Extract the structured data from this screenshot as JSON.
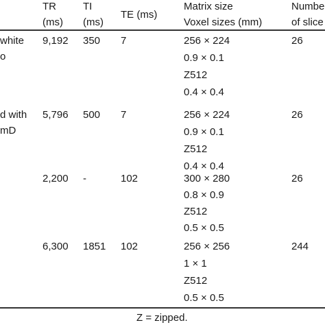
{
  "headers": {
    "tr": [
      "TR",
      "(ms)"
    ],
    "ti": [
      "TI",
      "(ms)"
    ],
    "te": "TE (ms)",
    "matrix": [
      "Matrix size",
      "Voxel sizes (mm)"
    ],
    "slices": [
      "Numbe",
      "of slice"
    ]
  },
  "rows": [
    {
      "label": [
        "white",
        "o"
      ],
      "tr": "9,192",
      "ti": "350",
      "te": "7",
      "matrix": [
        "256 × 224",
        "0.9 × 0.1",
        "Z512",
        "0.4 × 0.4"
      ],
      "slices": "26"
    },
    {
      "label": [
        "d with",
        "mD"
      ],
      "tr": "5,796",
      "ti": "500",
      "te": "7",
      "matrix": [
        "256 × 224",
        "0.9 × 0.1",
        "Z512",
        "0.4 × 0.4"
      ],
      "slices": "26"
    },
    {
      "label": [],
      "tr": "2,200",
      "ti": "-",
      "te": "102",
      "matrix": [
        "300 × 280",
        "0.8 × 0.9",
        "Z512",
        "0.5 × 0.5"
      ],
      "slices": "26"
    },
    {
      "label": [],
      "tr": "6,300",
      "ti": "1851",
      "te": "102",
      "matrix": [
        "256 × 256",
        "1 × 1",
        "Z512",
        "0.5 × 0.5"
      ],
      "slices": "244"
    }
  ],
  "footnote": "Z = zipped."
}
